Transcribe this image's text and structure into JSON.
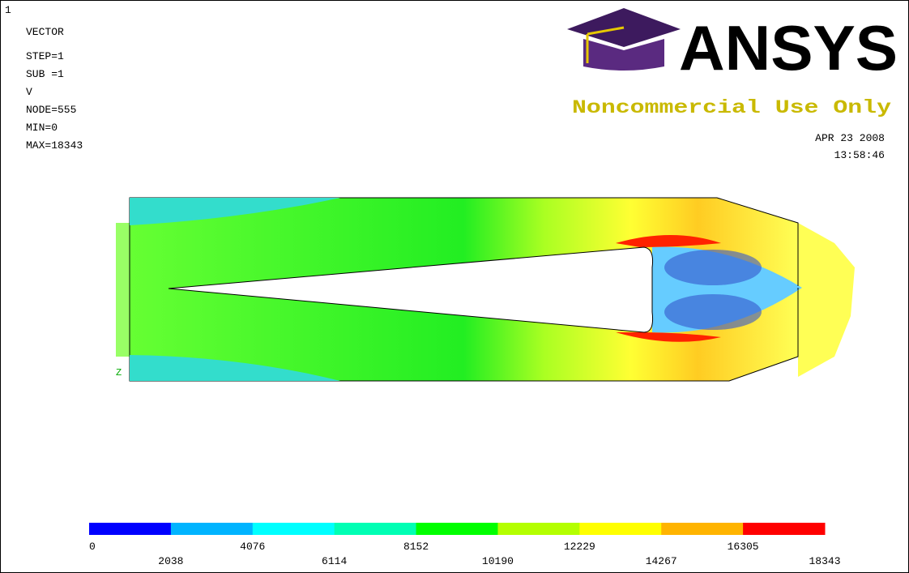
{
  "header": {
    "window_number": "1",
    "plot_type": "VECTOR",
    "step": "STEP=1",
    "sub": "SUB =1",
    "item": "V",
    "node": "NODE=555",
    "min": "MIN=0",
    "max": "MAX=18343"
  },
  "logo": {
    "brand": "ANSYS",
    "notice": "Noncommercial Use Only",
    "date": "APR 23 2008",
    "time": "13:58:46"
  },
  "axis_triad": "Z",
  "legend": {
    "values": [
      0,
      2038,
      4076,
      6114,
      8152,
      10190,
      12229,
      14267,
      16305,
      18343
    ],
    "colors": [
      "#0000ff",
      "#00b4ff",
      "#00ffff",
      "#00ffb4",
      "#00ff00",
      "#b4ff00",
      "#ffff00",
      "#ffb400",
      "#ff0000"
    ]
  }
}
